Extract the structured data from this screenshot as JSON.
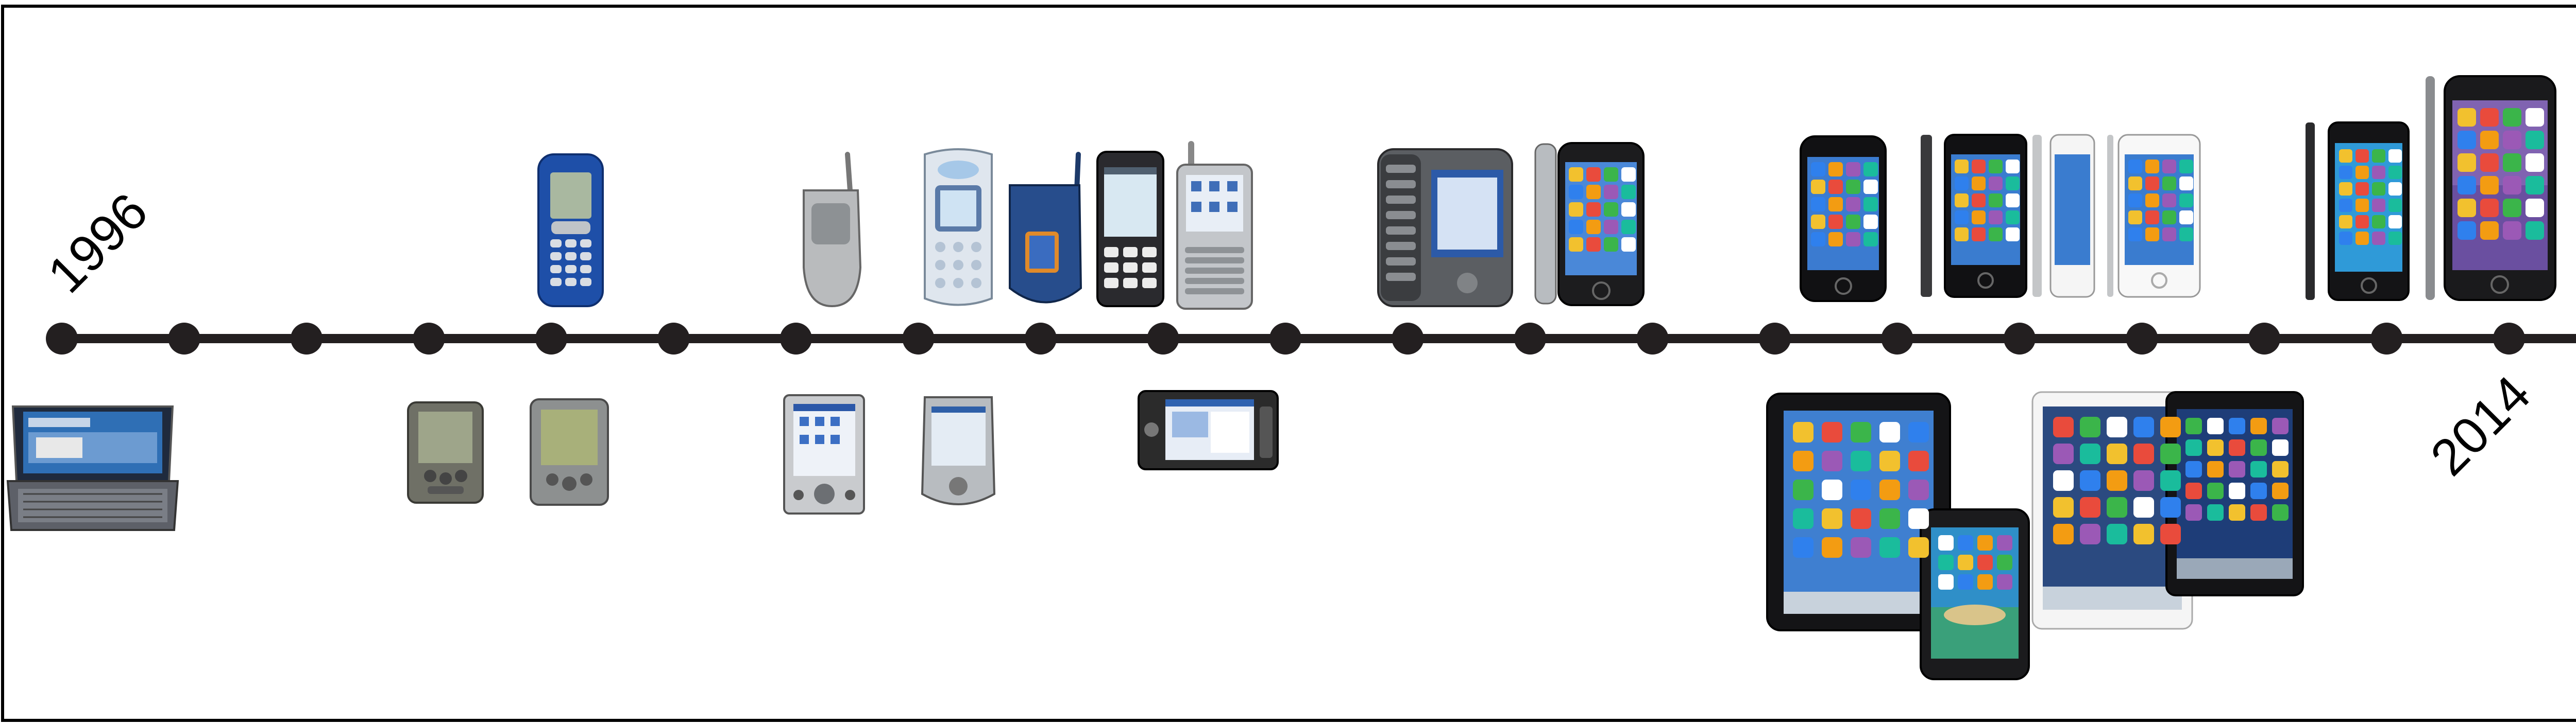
{
  "timeline": {
    "start_year": "1996",
    "end_year": "2014",
    "tick_count": 21,
    "line_color": "#231f20"
  },
  "devices": [
    {
      "name": "palmtop-pc-icon",
      "tick": 0,
      "side": "below"
    },
    {
      "name": "pda-palm-icon",
      "tick": 3,
      "side": "below"
    },
    {
      "name": "pda-palm-icon",
      "tick": 4,
      "side": "below"
    },
    {
      "name": "nokia-candybar-phone-icon",
      "tick": 4,
      "side": "above"
    },
    {
      "name": "flip-phone-icon",
      "tick": 6,
      "side": "above"
    },
    {
      "name": "pocket-pc-icon",
      "tick": 6,
      "side": "below"
    },
    {
      "name": "pocket-pc-icon",
      "tick": 7,
      "side": "below"
    },
    {
      "name": "sony-ericsson-phone-icon",
      "tick": 7,
      "side": "above"
    },
    {
      "name": "flip-phone-blue-icon",
      "tick": 8,
      "side": "above"
    },
    {
      "name": "sony-ericsson-smartphone-icon",
      "tick": 8,
      "side": "above"
    },
    {
      "name": "treo-smartphone-icon",
      "tick": 9,
      "side": "above"
    },
    {
      "name": "nokia-internet-tablet-icon",
      "tick": 9,
      "side": "below"
    },
    {
      "name": "htc-slider-phone-icon",
      "tick": 11,
      "side": "above"
    },
    {
      "name": "iphone-original-icon",
      "tick": 12,
      "side": "above"
    },
    {
      "name": "iphone-3g-icon",
      "tick": 14,
      "side": "above"
    },
    {
      "name": "iphone-4-icon",
      "tick": 15,
      "side": "above"
    },
    {
      "name": "iphone-4-white-icon",
      "tick": 16,
      "side": "above"
    },
    {
      "name": "ipad-icon",
      "tick": 14,
      "side": "below"
    },
    {
      "name": "galaxy-tab-icon",
      "tick": 15,
      "side": "below"
    },
    {
      "name": "ipad-white-icon",
      "tick": 16,
      "side": "below"
    },
    {
      "name": "ipad-mini-icon",
      "tick": 17,
      "side": "below"
    },
    {
      "name": "iphone-5-icon",
      "tick": 18,
      "side": "above"
    },
    {
      "name": "iphone-6-icon",
      "tick": 19,
      "side": "above"
    }
  ]
}
